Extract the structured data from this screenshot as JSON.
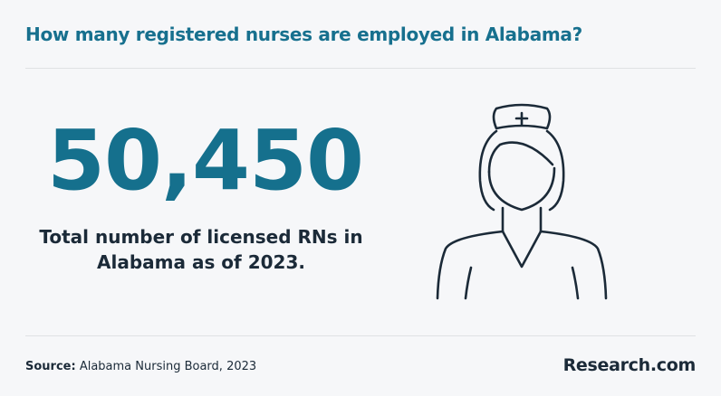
{
  "header": {
    "title": "How many registered nurses are employed in Alabama?"
  },
  "stat": {
    "value": "50,450",
    "lines": [
      "Total number of licensed RNs in",
      "Alabama as of 2023."
    ]
  },
  "footer": {
    "source_label": "Source:",
    "source": "Alabama Nursing Board, 2023",
    "brand": "Research.com"
  }
}
